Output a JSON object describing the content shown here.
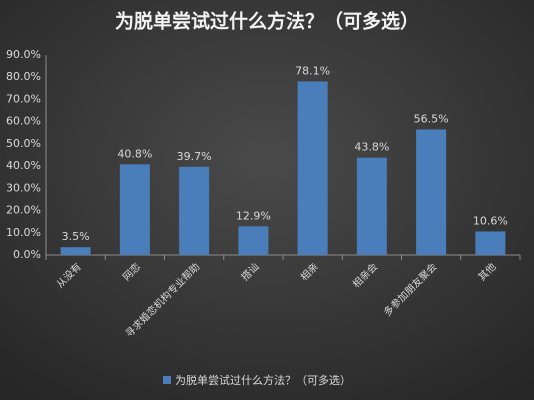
{
  "chart_data": {
    "type": "bar",
    "title": "为脱单尝试过什么方法？（可多选）",
    "categories": [
      "从没有",
      "网恋",
      "寻求婚恋机构专业帮助",
      "搭讪",
      "相亲",
      "相亲会",
      "多参加朋友聚会",
      "其他"
    ],
    "series": [
      {
        "name": "为脱单尝试过什么方法？（可多选）",
        "color": "#4a7ebb",
        "values": [
          3.5,
          40.8,
          39.7,
          12.9,
          78.1,
          43.8,
          56.5,
          10.6
        ],
        "value_labels": [
          "3.5%",
          "40.8%",
          "39.7%",
          "12.9%",
          "78.1%",
          "43.8%",
          "56.5%",
          "10.6%"
        ]
      }
    ],
    "ylim": [
      0,
      90
    ],
    "yticks": [
      {
        "value": 0,
        "label": "0.0%"
      },
      {
        "value": 10,
        "label": "10.0%"
      },
      {
        "value": 20,
        "label": "20.0%"
      },
      {
        "value": 30,
        "label": "30.0%"
      },
      {
        "value": 40,
        "label": "40.0%"
      },
      {
        "value": 50,
        "label": "50.0%"
      },
      {
        "value": 60,
        "label": "60.0%"
      },
      {
        "value": 70,
        "label": "70.0%"
      },
      {
        "value": 80,
        "label": "80.0%"
      },
      {
        "value": 90,
        "label": "90.0%"
      }
    ],
    "grid": false,
    "legend": "bottom"
  }
}
